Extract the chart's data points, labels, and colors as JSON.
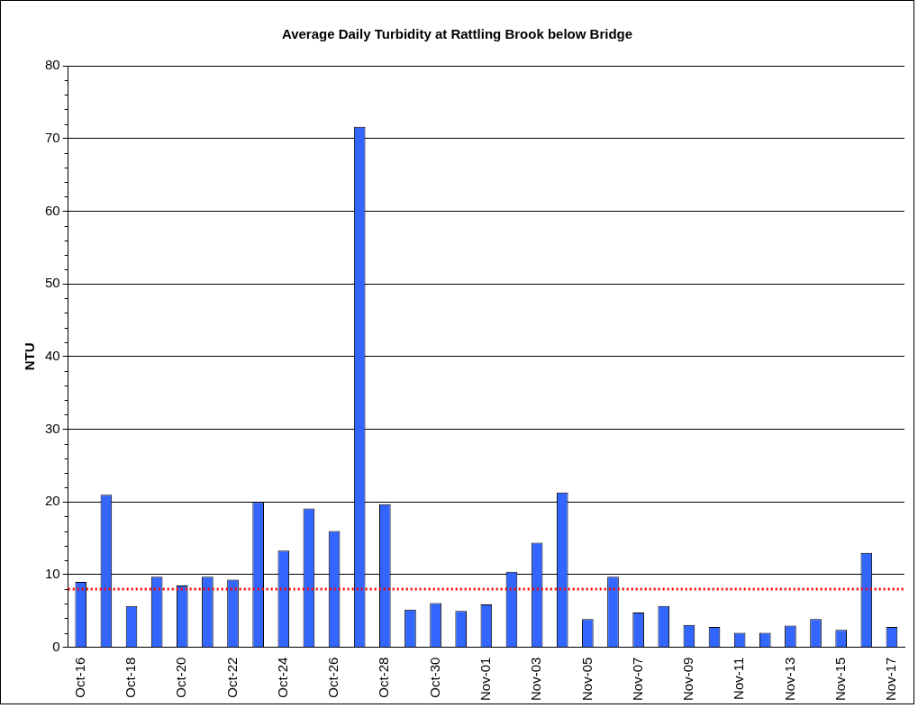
{
  "chart_data": {
    "type": "bar",
    "title": "Average Daily Turbidity at Rattling Brook below Bridge",
    "ylabel": "NTU",
    "categories": [
      "Oct-16",
      null,
      "Oct-18",
      null,
      "Oct-20",
      null,
      "Oct-22",
      null,
      "Oct-24",
      null,
      "Oct-26",
      null,
      "Oct-28",
      null,
      "Oct-30",
      null,
      "Nov-01",
      null,
      "Nov-03",
      null,
      "Nov-05",
      null,
      "Nov-07",
      null,
      "Nov-09",
      null,
      "Nov-11",
      null,
      "Nov-13",
      null,
      "Nov-15",
      null,
      "Nov-17"
    ],
    "values": [
      9,
      21,
      5.7,
      9.7,
      8.5,
      9.7,
      9.3,
      20,
      13.3,
      19.1,
      16,
      71.6,
      19.7,
      5.2,
      6.1,
      5,
      5.9,
      10.4,
      14.4,
      21.3,
      3.9,
      9.7,
      4.8,
      5.7,
      3.1,
      2.8,
      2,
      2,
      3,
      3.9,
      2.4,
      13,
      2.8
    ],
    "color": "#3366ff",
    "ylim": [
      0,
      80
    ],
    "yticks": [
      0,
      10,
      20,
      30,
      40,
      50,
      60,
      70,
      80
    ],
    "grid": "y",
    "legend": false,
    "ref_lines": [
      {
        "axis": "y",
        "value": 8,
        "color": "#ff0000",
        "line_style": "dotted"
      }
    ]
  }
}
